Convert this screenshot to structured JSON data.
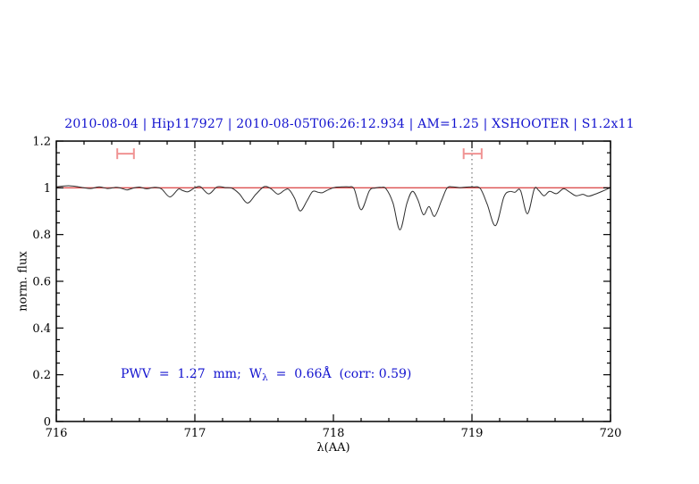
{
  "chart_data": {
    "type": "line",
    "title": "2010-08-04 | Hip117927 | 2010-08-05T06:26:12.934 | AM=1.25 | XSHOOTER | S1.2x11",
    "xlabel": "λ(AA)",
    "ylabel": "norm. flux",
    "xlim": [
      716,
      720
    ],
    "ylim": [
      0,
      1.2
    ],
    "x_major_ticks": [
      716,
      717,
      718,
      719,
      720
    ],
    "x_tick_labels": [
      "716",
      "717",
      "718",
      "719",
      "720"
    ],
    "x_minor_step": 0.2,
    "y_major_ticks": [
      0,
      0.2,
      0.4,
      0.6,
      0.8,
      1.0,
      1.2
    ],
    "y_tick_labels": [
      "0",
      "0.2",
      "0.4",
      "0.6",
      "0.8",
      "1",
      "1.2"
    ],
    "y_minor_step": 0.05,
    "grid": false,
    "legend": "none",
    "reference_line_y": 1.0,
    "dotted_vlines_x": [
      717,
      719
    ],
    "band_markers": [
      {
        "x_min": 716.44,
        "x_max": 716.56,
        "y": 1.146,
        "cap_halfheight": 0.023
      },
      {
        "x_min": 718.94,
        "x_max": 719.07,
        "y": 1.146,
        "cap_halfheight": 0.023
      }
    ],
    "series": [
      {
        "name": "normalized-spectrum",
        "points": [
          [
            716.0,
            1.004
          ],
          [
            716.04,
            1.007
          ],
          [
            716.09,
            1.009
          ],
          [
            716.14,
            1.006
          ],
          [
            716.2,
            1.0
          ],
          [
            716.25,
            0.997
          ],
          [
            716.31,
            1.004
          ],
          [
            716.37,
            0.997
          ],
          [
            716.43,
            1.002
          ],
          [
            716.47,
            0.998
          ],
          [
            716.51,
            0.991
          ],
          [
            716.55,
            0.998
          ],
          [
            716.6,
            1.003
          ],
          [
            716.65,
            0.996
          ],
          [
            716.71,
            1.002
          ],
          [
            716.76,
            0.995
          ],
          [
            716.82,
            0.961
          ],
          [
            716.88,
            0.994
          ],
          [
            716.91,
            0.989
          ],
          [
            716.95,
            0.983
          ],
          [
            717.0,
            1.0
          ],
          [
            717.04,
            1.005
          ],
          [
            717.1,
            0.974
          ],
          [
            717.16,
            1.004
          ],
          [
            717.22,
            1.001
          ],
          [
            717.27,
            0.998
          ],
          [
            717.32,
            0.975
          ],
          [
            717.38,
            0.935
          ],
          [
            717.44,
            0.972
          ],
          [
            717.5,
            1.005
          ],
          [
            717.55,
            0.996
          ],
          [
            717.6,
            0.973
          ],
          [
            717.65,
            0.991
          ],
          [
            717.68,
            0.992
          ],
          [
            717.72,
            0.955
          ],
          [
            717.76,
            0.901
          ],
          [
            717.81,
            0.945
          ],
          [
            717.85,
            0.984
          ],
          [
            717.89,
            0.981
          ],
          [
            717.92,
            0.979
          ],
          [
            717.96,
            0.991
          ],
          [
            718.01,
            1.002
          ],
          [
            718.06,
            1.004
          ],
          [
            718.11,
            1.004
          ],
          [
            718.15,
            0.995
          ],
          [
            718.2,
            0.906
          ],
          [
            718.26,
            0.988
          ],
          [
            718.3,
            0.999
          ],
          [
            718.34,
            1.002
          ],
          [
            718.38,
            0.996
          ],
          [
            718.43,
            0.935
          ],
          [
            718.48,
            0.82
          ],
          [
            718.53,
            0.933
          ],
          [
            718.57,
            0.985
          ],
          [
            718.61,
            0.948
          ],
          [
            718.65,
            0.885
          ],
          [
            718.69,
            0.92
          ],
          [
            718.73,
            0.878
          ],
          [
            718.78,
            0.945
          ],
          [
            718.82,
            0.999
          ],
          [
            718.86,
            1.004
          ],
          [
            718.91,
            1.001
          ],
          [
            718.96,
            1.003
          ],
          [
            719.01,
            1.004
          ],
          [
            719.06,
            0.997
          ],
          [
            719.11,
            0.93
          ],
          [
            719.17,
            0.838
          ],
          [
            719.23,
            0.96
          ],
          [
            719.27,
            0.984
          ],
          [
            719.31,
            0.981
          ],
          [
            719.35,
            0.989
          ],
          [
            719.4,
            0.889
          ],
          [
            719.45,
            0.995
          ],
          [
            719.48,
            0.99
          ],
          [
            719.52,
            0.966
          ],
          [
            719.56,
            0.985
          ],
          [
            719.61,
            0.975
          ],
          [
            719.66,
            0.996
          ],
          [
            719.7,
            0.984
          ],
          [
            719.75,
            0.966
          ],
          [
            719.8,
            0.972
          ],
          [
            719.84,
            0.964
          ],
          [
            719.89,
            0.973
          ],
          [
            719.94,
            0.985
          ],
          [
            720.0,
            1.001
          ]
        ]
      }
    ],
    "colors": {
      "title": "#1313cf",
      "annotation": "#1313cf",
      "spectrum": "#2e2e2e",
      "reference_line": "#dc5050",
      "band_marker": "#f09393",
      "vline": "#5a5a5a",
      "frame": "#000000"
    }
  },
  "annotation": {
    "part1": "PWV  =  1.27  mm;  W",
    "sub": "λ",
    "part2": "  =  0.66Å  (corr: 0.59)"
  }
}
